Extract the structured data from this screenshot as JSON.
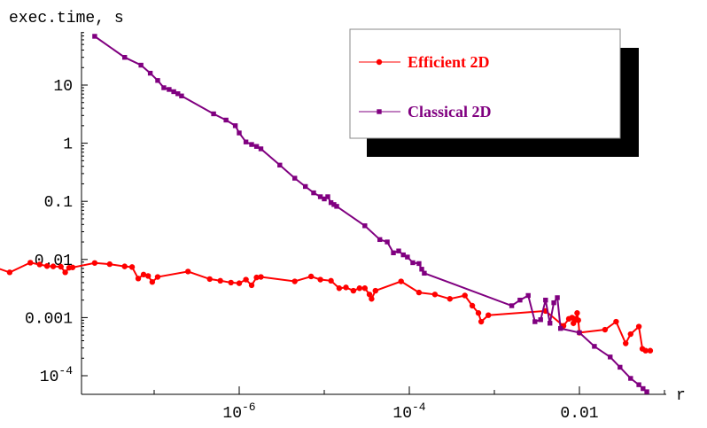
{
  "chart_data": {
    "type": "line",
    "title": "",
    "xlabel": "r",
    "ylabel": "exec.time, s",
    "x_scale": "log",
    "y_scale": "log",
    "xlim": [
      1e-09,
      0.1
    ],
    "ylim": [
      5e-05,
      80
    ],
    "grid": false,
    "legend_position": "top-right",
    "x_ticks": [
      {
        "value": 1e-06,
        "mantissa": "10",
        "exponent": "-6"
      },
      {
        "value": 0.0001,
        "mantissa": "10",
        "exponent": "-4"
      },
      {
        "value": 0.01,
        "mantissa": "0.01",
        "exponent": ""
      }
    ],
    "y_ticks": [
      {
        "value": 10,
        "mantissa": "10",
        "exponent": ""
      },
      {
        "value": 1,
        "mantissa": "1",
        "exponent": ""
      },
      {
        "value": 0.1,
        "mantissa": "0.1",
        "exponent": ""
      },
      {
        "value": 0.01,
        "mantissa": "0.01",
        "exponent": ""
      },
      {
        "value": 0.001,
        "mantissa": "0.001",
        "exponent": ""
      },
      {
        "value": 0.0001,
        "mantissa": "10",
        "exponent": "-4"
      }
    ],
    "series": [
      {
        "name": "Efficient 2D",
        "color": "#ff0000",
        "marker": "circle",
        "points": [
          [
            1e-09,
            0.0085
          ],
          [
            2e-09,
            0.006
          ],
          [
            3.5e-09,
            0.0088
          ],
          [
            4.5e-09,
            0.0082
          ],
          [
            5.5e-09,
            0.0077
          ],
          [
            6.5e-09,
            0.0076
          ],
          [
            8e-09,
            0.0075
          ],
          [
            9e-09,
            0.006
          ],
          [
            1e-08,
            0.0072
          ],
          [
            1.1e-08,
            0.0073
          ],
          [
            2e-08,
            0.0087
          ],
          [
            3e-08,
            0.0083
          ],
          [
            4.5e-08,
            0.0076
          ],
          [
            5.5e-08,
            0.0074
          ],
          [
            6.5e-08,
            0.0047
          ],
          [
            7.5e-08,
            0.0055
          ],
          [
            8.5e-08,
            0.0052
          ],
          [
            9.5e-08,
            0.0041
          ],
          [
            1.1e-07,
            0.005
          ],
          [
            2.5e-07,
            0.0062
          ],
          [
            4.5e-07,
            0.0046
          ],
          [
            6e-07,
            0.0043
          ],
          [
            8e-07,
            0.004
          ],
          [
            1e-06,
            0.0039
          ],
          [
            1.2e-06,
            0.0045
          ],
          [
            1.4e-06,
            0.0036
          ],
          [
            1.6e-06,
            0.0049
          ],
          [
            1.8e-06,
            0.005
          ],
          [
            4.5e-06,
            0.0042
          ],
          [
            7e-06,
            0.0051
          ],
          [
            9e-06,
            0.0045
          ],
          [
            1.2e-05,
            0.0043
          ],
          [
            1.5e-05,
            0.0032
          ],
          [
            1.8e-05,
            0.0033
          ],
          [
            2.2e-05,
            0.0029
          ],
          [
            2.6e-05,
            0.0032
          ],
          [
            3e-05,
            0.0032
          ],
          [
            3.4e-05,
            0.0025
          ],
          [
            3.6e-05,
            0.0021
          ],
          [
            4e-05,
            0.0029
          ],
          [
            8e-05,
            0.0042
          ],
          [
            0.00013,
            0.0027
          ],
          [
            0.0002,
            0.0025
          ],
          [
            0.0003,
            0.0021
          ],
          [
            0.00045,
            0.0024
          ],
          [
            0.00055,
            0.0016
          ],
          [
            0.00065,
            0.0012
          ],
          [
            0.0007,
            0.00085
          ],
          [
            0.00085,
            0.0011
          ],
          [
            0.004,
            0.0013
          ],
          [
            0.0065,
            0.00072
          ],
          [
            0.0075,
            0.00095
          ],
          [
            0.0082,
            0.001
          ],
          [
            0.0085,
            0.0008
          ],
          [
            0.0088,
            0.00095
          ],
          [
            0.0091,
            0.00092
          ],
          [
            0.0094,
            0.0012
          ],
          [
            0.0097,
            0.0009
          ],
          [
            0.01,
            0.00055
          ],
          [
            0.02,
            0.00062
          ],
          [
            0.027,
            0.00085
          ],
          [
            0.035,
            0.00036
          ],
          [
            0.04,
            0.00052
          ],
          [
            0.05,
            0.0007
          ],
          [
            0.055,
            0.00029
          ],
          [
            0.06,
            0.00027
          ],
          [
            0.068,
            0.00027
          ]
        ]
      },
      {
        "name": "Classical 2D",
        "color": "#800080",
        "marker": "square",
        "points": [
          [
            2e-08,
            69
          ],
          [
            4.5e-08,
            30
          ],
          [
            7e-08,
            22
          ],
          [
            9e-08,
            16
          ],
          [
            1.1e-07,
            12
          ],
          [
            1.3e-07,
            9
          ],
          [
            1.5e-07,
            8.4
          ],
          [
            1.7e-07,
            7.7
          ],
          [
            1.9e-07,
            7.1
          ],
          [
            2.1e-07,
            6.5
          ],
          [
            5e-07,
            3.2
          ],
          [
            7e-07,
            2.5
          ],
          [
            9e-07,
            2.0
          ],
          [
            1e-06,
            1.5
          ],
          [
            1.2e-06,
            1.05
          ],
          [
            1.4e-06,
            0.95
          ],
          [
            1.6e-06,
            0.88
          ],
          [
            1.8e-06,
            0.8
          ],
          [
            3e-06,
            0.42
          ],
          [
            4.5e-06,
            0.25
          ],
          [
            6e-06,
            0.18
          ],
          [
            7.5e-06,
            0.14
          ],
          [
            9e-06,
            0.12
          ],
          [
            1e-05,
            0.11
          ],
          [
            1.1e-05,
            0.12
          ],
          [
            1.2e-05,
            0.095
          ],
          [
            1.3e-05,
            0.088
          ],
          [
            1.4e-05,
            0.082
          ],
          [
            3e-05,
            0.038
          ],
          [
            4.5e-05,
            0.022
          ],
          [
            5.5e-05,
            0.02
          ],
          [
            6.5e-05,
            0.013
          ],
          [
            7.5e-05,
            0.014
          ],
          [
            8.5e-05,
            0.012
          ],
          [
            9.5e-05,
            0.011
          ],
          [
            0.00011,
            0.0088
          ],
          [
            0.00013,
            0.0085
          ],
          [
            0.00014,
            0.0068
          ],
          [
            0.00015,
            0.0058
          ],
          [
            0.0016,
            0.0016
          ],
          [
            0.002,
            0.002
          ],
          [
            0.0025,
            0.0024
          ],
          [
            0.003,
            0.00085
          ],
          [
            0.0035,
            0.00092
          ],
          [
            0.004,
            0.002
          ],
          [
            0.0045,
            0.0008
          ],
          [
            0.005,
            0.0018
          ],
          [
            0.0055,
            0.0022
          ],
          [
            0.006,
            0.00065
          ],
          [
            0.01,
            0.00055
          ],
          [
            0.015,
            0.00032
          ],
          [
            0.023,
            0.00021
          ],
          [
            0.03,
            0.00014
          ],
          [
            0.04,
            9e-05
          ],
          [
            0.05,
            7e-05
          ],
          [
            0.056,
            6e-05
          ],
          [
            0.062,
            5.3e-05
          ]
        ]
      }
    ]
  }
}
